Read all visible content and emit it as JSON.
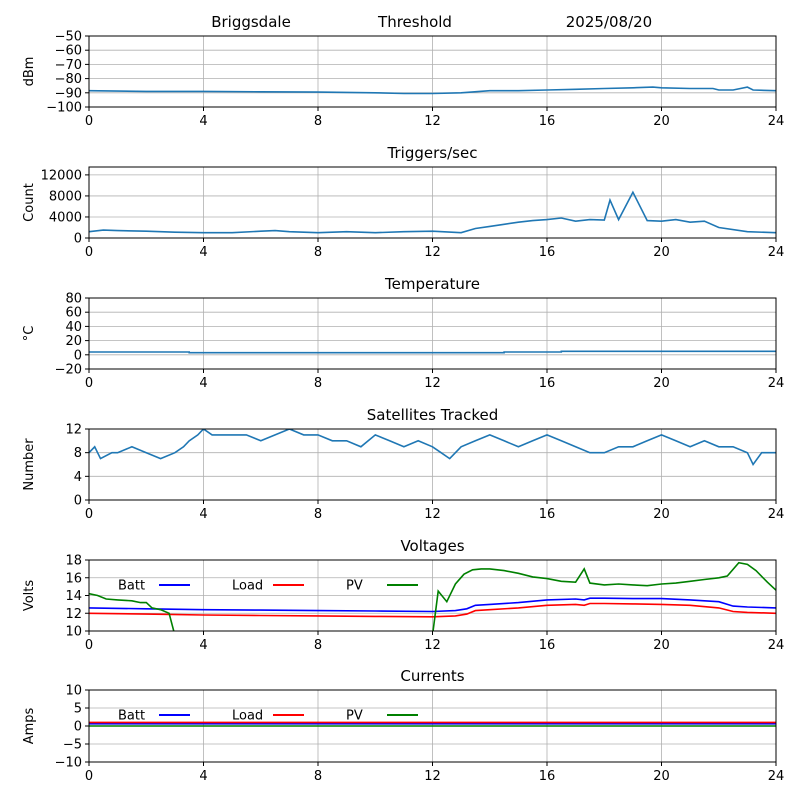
{
  "header": {
    "station": "Briggsdale",
    "mode": "Threshold",
    "date": "2025/08/20"
  },
  "chart_data": [
    {
      "id": "threshold",
      "type": "line",
      "title": "",
      "xlabel": "",
      "ylabel": "dBm",
      "xlim": [
        0,
        24
      ],
      "ylim": [
        -100,
        -50
      ],
      "yticks": [
        -100,
        -90,
        -80,
        -70,
        -60,
        -50
      ],
      "xticks": [
        0,
        4,
        8,
        12,
        16,
        20,
        24
      ],
      "grid": true,
      "series": [
        {
          "color": "#1f77b4",
          "x": [
            0,
            2,
            4,
            6,
            8,
            10,
            11,
            12,
            13,
            14,
            15,
            16,
            17,
            18,
            19,
            19.7,
            20,
            21,
            21.8,
            22,
            22.5,
            23,
            23.2,
            24
          ],
          "y": [
            -88.5,
            -89,
            -89,
            -89.3,
            -89.5,
            -90,
            -90.5,
            -90.5,
            -90,
            -88.5,
            -88.5,
            -88,
            -87.5,
            -87,
            -86.5,
            -86,
            -86.5,
            -87,
            -87,
            -88,
            -88,
            -86,
            -88,
            -88.5
          ]
        }
      ]
    },
    {
      "id": "triggers",
      "type": "line",
      "title": "Triggers/sec",
      "xlabel": "",
      "ylabel": "Count",
      "xlim": [
        0,
        24
      ],
      "ylim": [
        0,
        13500
      ],
      "yticks": [
        0,
        4000,
        8000,
        12000
      ],
      "xticks": [
        0,
        4,
        8,
        12,
        16,
        20,
        24
      ],
      "grid": true,
      "series": [
        {
          "color": "#1f77b4",
          "x": [
            0,
            0.5,
            1,
            2,
            3,
            4,
            5,
            6,
            6.5,
            7,
            8,
            9,
            10,
            11,
            12,
            13,
            13.5,
            14,
            14.5,
            15,
            15.5,
            16,
            16.5,
            17,
            17.5,
            18,
            18.2,
            18.5,
            19,
            19.5,
            20,
            20.5,
            21,
            21.5,
            22,
            23,
            24
          ],
          "y": [
            1200,
            1500,
            1400,
            1300,
            1100,
            1000,
            1000,
            1300,
            1400,
            1200,
            1000,
            1200,
            1000,
            1200,
            1300,
            1000,
            1800,
            2200,
            2600,
            3000,
            3300,
            3500,
            3800,
            3200,
            3500,
            3400,
            7200,
            3500,
            8700,
            3300,
            3200,
            3500,
            3000,
            3200,
            2000,
            1200,
            1000
          ]
        }
      ]
    },
    {
      "id": "temperature",
      "type": "line",
      "title": "Temperature",
      "xlabel": "",
      "ylabel": "°C",
      "xlim": [
        0,
        24
      ],
      "ylim": [
        -20,
        80
      ],
      "yticks": [
        -20,
        0,
        20,
        40,
        60,
        80
      ],
      "xticks": [
        0,
        4,
        8,
        12,
        16,
        20,
        24
      ],
      "grid": true,
      "series": [
        {
          "color": "#1f77b4",
          "x": [
            0,
            3.5,
            3.5,
            14.5,
            14.5,
            16.5,
            16.5,
            24
          ],
          "y": [
            4,
            4,
            3,
            3,
            4,
            4,
            5,
            5
          ]
        }
      ]
    },
    {
      "id": "satellites",
      "type": "line",
      "title": "Satellites Tracked",
      "xlabel": "",
      "ylabel": "Number",
      "xlim": [
        0,
        24
      ],
      "ylim": [
        0,
        12
      ],
      "yticks": [
        0,
        4,
        8,
        12
      ],
      "xticks": [
        0,
        4,
        8,
        12,
        16,
        20,
        24
      ],
      "grid": true,
      "series": [
        {
          "color": "#1f77b4",
          "x": [
            0,
            0.2,
            0.3,
            0.4,
            0.8,
            1.0,
            1.5,
            2.0,
            2.5,
            3.0,
            3.3,
            3.5,
            3.8,
            4.0,
            4.3,
            4.7,
            5.0,
            5.5,
            6.0,
            6.5,
            7.0,
            7.5,
            8.0,
            8.5,
            9.0,
            9.5,
            10.0,
            10.5,
            11.0,
            11.5,
            12.0,
            12.3,
            12.6,
            13.0,
            13.5,
            14.0,
            14.5,
            15.0,
            15.5,
            16.0,
            16.5,
            17.0,
            17.5,
            18.0,
            18.5,
            19.0,
            19.5,
            20.0,
            20.5,
            21.0,
            21.5,
            22.0,
            22.5,
            23.0,
            23.2,
            23.5,
            24
          ],
          "y": [
            8,
            9,
            8,
            7,
            8,
            8,
            9,
            8,
            7,
            8,
            9,
            10,
            11,
            12,
            11,
            11,
            11,
            11,
            10,
            11,
            12,
            11,
            11,
            10,
            10,
            9,
            11,
            10,
            9,
            10,
            9,
            8,
            7,
            9,
            10,
            11,
            10,
            9,
            10,
            11,
            10,
            9,
            8,
            8,
            9,
            9,
            10,
            11,
            10,
            9,
            10,
            9,
            9,
            8,
            6,
            8,
            8
          ]
        }
      ]
    },
    {
      "id": "voltages",
      "type": "line",
      "title": "Voltages",
      "xlabel": "",
      "ylabel": "Volts",
      "xlim": [
        0,
        24
      ],
      "ylim": [
        10,
        18
      ],
      "yticks": [
        10,
        12,
        14,
        16,
        18
      ],
      "xticks": [
        0,
        4,
        8,
        12,
        16,
        20,
        24
      ],
      "grid": true,
      "legend": "top-left",
      "series": [
        {
          "name": "Batt",
          "color": "#0000ff",
          "x": [
            0,
            2,
            4,
            6,
            8,
            10,
            12,
            12.8,
            13.2,
            13.5,
            14,
            15,
            16,
            17,
            17.3,
            17.5,
            18,
            19,
            20,
            21,
            22,
            22.5,
            23,
            24
          ],
          "y": [
            12.6,
            12.5,
            12.4,
            12.35,
            12.3,
            12.25,
            12.2,
            12.3,
            12.5,
            12.9,
            13.0,
            13.2,
            13.5,
            13.6,
            13.5,
            13.7,
            13.7,
            13.65,
            13.65,
            13.5,
            13.3,
            12.8,
            12.7,
            12.6
          ]
        },
        {
          "name": "Load",
          "color": "#ff0000",
          "x": [
            0,
            2,
            4,
            6,
            8,
            10,
            12,
            12.8,
            13.2,
            13.5,
            14,
            15,
            16,
            17,
            17.3,
            17.5,
            18,
            19,
            20,
            21,
            22,
            22.5,
            23,
            24
          ],
          "y": [
            12.0,
            11.9,
            11.8,
            11.75,
            11.7,
            11.65,
            11.6,
            11.7,
            11.9,
            12.3,
            12.4,
            12.6,
            12.9,
            13.0,
            12.9,
            13.1,
            13.1,
            13.05,
            13.0,
            12.9,
            12.6,
            12.2,
            12.1,
            12.0
          ]
        },
        {
          "name": "PV",
          "color": "#008000",
          "x": [
            0,
            0.3,
            0.6,
            1,
            1.5,
            1.8,
            2,
            2.2,
            2.5,
            2.8,
            3
          ],
          "y": [
            14.2,
            14.0,
            13.6,
            13.5,
            13.4,
            13.2,
            13.2,
            12.6,
            12.4,
            12.0,
            9.5
          ]
        },
        {
          "name": "PV",
          "color": "#008000",
          "x": [
            12.0,
            12.2,
            12.5,
            12.8,
            13.1,
            13.4,
            13.7,
            14.0,
            14.5,
            15.0,
            15.5,
            16.0,
            16.5,
            17.0,
            17.3,
            17.5,
            18.0,
            18.5,
            19.0,
            19.5,
            20.0,
            20.5,
            21.0,
            21.5,
            22.0,
            22.3,
            22.7,
            23.0,
            23.3,
            23.7,
            24.0
          ],
          "y": [
            9.5,
            14.5,
            13.3,
            15.3,
            16.4,
            16.9,
            17.0,
            17.0,
            16.8,
            16.5,
            16.1,
            15.9,
            15.6,
            15.5,
            17.0,
            15.4,
            15.2,
            15.3,
            15.2,
            15.1,
            15.3,
            15.4,
            15.6,
            15.8,
            16.0,
            16.2,
            17.7,
            17.5,
            16.8,
            15.5,
            14.6
          ]
        }
      ]
    },
    {
      "id": "currents",
      "type": "line",
      "title": "Currents",
      "xlabel": "",
      "ylabel": "Amps",
      "xlim": [
        0,
        24
      ],
      "ylim": [
        -10,
        10
      ],
      "yticks": [
        -10,
        -5,
        0,
        5,
        10
      ],
      "xticks": [
        0,
        4,
        8,
        12,
        16,
        20,
        24
      ],
      "grid": true,
      "legend": "top-left",
      "series": [
        {
          "name": "Batt",
          "color": "#0000ff",
          "x": [
            0,
            24
          ],
          "y": [
            0.6,
            0.6
          ]
        },
        {
          "name": "Load",
          "color": "#ff0000",
          "x": [
            0,
            24
          ],
          "y": [
            1.0,
            1.0
          ]
        },
        {
          "name": "PV",
          "color": "#008000",
          "x": [
            0,
            24
          ],
          "y": [
            0,
            0
          ]
        }
      ]
    }
  ]
}
